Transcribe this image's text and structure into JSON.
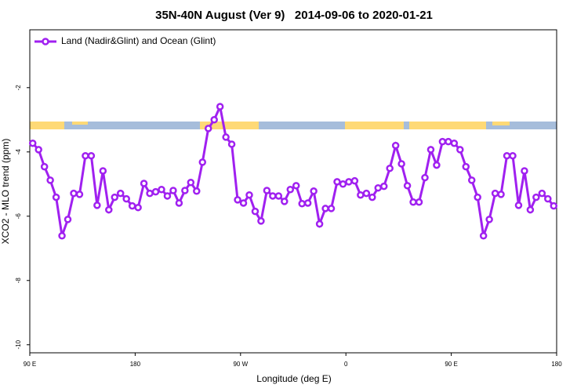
{
  "chart_data": {
    "type": "line",
    "title": "35N-40N August (Ver 9)   2014-09-06 to 2020-01-21",
    "x_label": "Longitude (deg E)",
    "y_label": "XCO2 - MLO trend (ppm)",
    "x": [
      92.5,
      97.5,
      102.5,
      107.5,
      112.5,
      117.5,
      122.5,
      127.5,
      132.5,
      137.5,
      142.5,
      147.5,
      152.5,
      157.5,
      162.5,
      167.5,
      172.5,
      177.5,
      182.5,
      187.5,
      192.5,
      197.5,
      202.5,
      207.5,
      212.5,
      217.5,
      222.5,
      227.5,
      232.5,
      237.5,
      242.5,
      247.5,
      252.5,
      257.5,
      262.5,
      267.5,
      272.5,
      277.5,
      282.5,
      287.5,
      292.5,
      297.5,
      302.5,
      307.5,
      312.5,
      317.5,
      322.5,
      327.5,
      332.5,
      337.5,
      342.5,
      347.5,
      352.5,
      357.5,
      362.5,
      367.5,
      372.5,
      377.5,
      382.5,
      387.5,
      392.5,
      397.5,
      402.5,
      407.5,
      412.5,
      417.5,
      422.5,
      427.5,
      432.5,
      437.5,
      442.5,
      447.5,
      452.5,
      457.5,
      462.5,
      467.5,
      472.5,
      477.5,
      482.5,
      487.5,
      492.5,
      497.5,
      502.5,
      507.5,
      512.5,
      517.5,
      522.5,
      527.5,
      532.5,
      537.5
    ],
    "series": [
      {
        "name": "Land (Nadir&Glint) and Ocean (Glint)",
        "color": "#a020f0",
        "values": [
          -3.73,
          -3.93,
          -4.46,
          -4.88,
          -5.41,
          -6.61,
          -6.1,
          -5.29,
          -5.32,
          -4.12,
          -4.12,
          -5.66,
          -4.59,
          -5.8,
          -5.41,
          -5.29,
          -5.46,
          -5.68,
          -5.73,
          -4.98,
          -5.29,
          -5.24,
          -5.17,
          -5.37,
          -5.2,
          -5.59,
          -5.2,
          -4.95,
          -5.22,
          -4.32,
          -3.27,
          -3.0,
          -2.59,
          -3.54,
          -3.76,
          -5.49,
          -5.59,
          -5.34,
          -5.85,
          -6.15,
          -5.2,
          -5.37,
          -5.37,
          -5.54,
          -5.17,
          -5.05,
          -5.61,
          -5.59,
          -5.22,
          -6.24,
          -5.76,
          -5.76,
          -4.93,
          -5.0,
          -4.93,
          -4.9,
          -5.34,
          -5.29,
          -5.41,
          -5.12,
          -5.07,
          -4.51,
          -3.8,
          -4.37,
          -5.05,
          -5.56,
          -5.56,
          -4.8,
          -3.93,
          -4.41,
          -3.68,
          -3.68,
          -3.73,
          -3.93,
          -4.46,
          -4.88,
          -5.41,
          -6.61,
          -6.1,
          -5.29,
          -5.32,
          -4.12,
          -4.12,
          -5.66,
          -4.59,
          -5.8,
          -5.41,
          -5.29,
          -5.46,
          -5.68
        ]
      }
    ],
    "xlim": [
      90,
      540
    ],
    "xticks": [
      {
        "value": 90,
        "label": "90 E"
      },
      180,
      {
        "value": 270,
        "label": "90 W"
      },
      {
        "value": 360,
        "label": "0"
      },
      {
        "value": 450,
        "label": "90 E"
      },
      {
        "value": 540,
        "label": "180"
      }
    ],
    "ylim": [
      -10.25,
      -0.2
    ],
    "yticks": [
      -2,
      -4,
      -6,
      -8,
      -10
    ],
    "legend": "top-left"
  }
}
